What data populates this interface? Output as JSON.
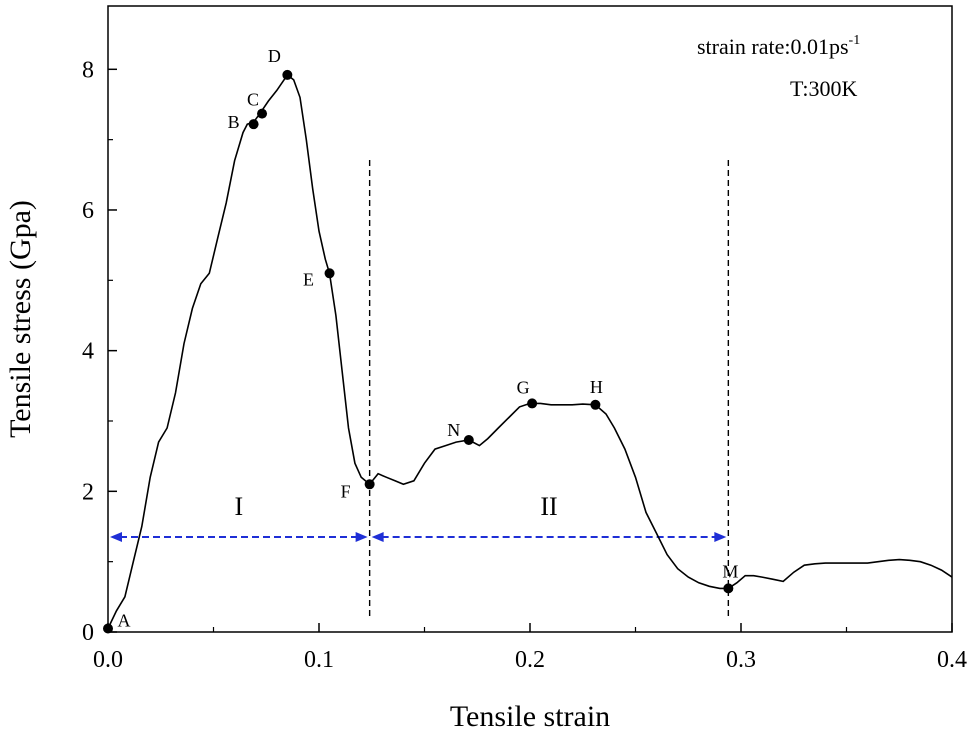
{
  "chart_data": {
    "type": "line",
    "xlabel": "Tensile strain",
    "ylabel": "Tensile stress (Gpa)",
    "xlim": [
      0,
      0.4
    ],
    "ylim": [
      0,
      8.9
    ],
    "xticks": [
      0.0,
      0.1,
      0.2,
      0.3,
      0.4
    ],
    "xtick_labels": [
      "0.0",
      "0.1",
      "0.2",
      "0.3",
      "0.4"
    ],
    "yticks": [
      0,
      2,
      4,
      6,
      8
    ],
    "ytick_labels": [
      "0",
      "2",
      "4",
      "6",
      "8"
    ],
    "grid": false,
    "annotation": {
      "strain_rate_prefix": "strain rate:0.01ps",
      "strain_rate_superscript": "-1",
      "temperature": "T:300K"
    },
    "series": [
      {
        "color": "#000000",
        "x": [
          0.0,
          0.004,
          0.008,
          0.012,
          0.016,
          0.02,
          0.024,
          0.028,
          0.032,
          0.036,
          0.04,
          0.044,
          0.048,
          0.052,
          0.056,
          0.06,
          0.064,
          0.066,
          0.069,
          0.072,
          0.076,
          0.08,
          0.085,
          0.088,
          0.091,
          0.094,
          0.097,
          0.1,
          0.103,
          0.105,
          0.108,
          0.111,
          0.114,
          0.117,
          0.12,
          0.124,
          0.128,
          0.132,
          0.136,
          0.14,
          0.145,
          0.15,
          0.155,
          0.16,
          0.165,
          0.171,
          0.176,
          0.18,
          0.185,
          0.19,
          0.195,
          0.2,
          0.205,
          0.21,
          0.215,
          0.22,
          0.225,
          0.231,
          0.236,
          0.24,
          0.245,
          0.25,
          0.255,
          0.26,
          0.265,
          0.27,
          0.275,
          0.28,
          0.285,
          0.29,
          0.294,
          0.298,
          0.302,
          0.306,
          0.31,
          0.315,
          0.32,
          0.325,
          0.33,
          0.335,
          0.34,
          0.345,
          0.35,
          0.355,
          0.36,
          0.365,
          0.37,
          0.375,
          0.38,
          0.385,
          0.39,
          0.395,
          0.4
        ],
        "y": [
          0.05,
          0.3,
          0.5,
          1.0,
          1.5,
          2.2,
          2.7,
          2.9,
          3.4,
          4.1,
          4.6,
          4.95,
          5.1,
          5.6,
          6.1,
          6.7,
          7.1,
          7.22,
          7.25,
          7.37,
          7.55,
          7.7,
          7.92,
          7.85,
          7.6,
          7.0,
          6.3,
          5.7,
          5.3,
          5.1,
          4.5,
          3.7,
          2.9,
          2.4,
          2.2,
          2.1,
          2.25,
          2.2,
          2.15,
          2.1,
          2.15,
          2.4,
          2.6,
          2.65,
          2.7,
          2.73,
          2.65,
          2.75,
          2.9,
          3.05,
          3.2,
          3.25,
          3.25,
          3.23,
          3.23,
          3.23,
          3.24,
          3.23,
          3.1,
          2.9,
          2.6,
          2.2,
          1.7,
          1.4,
          1.1,
          0.9,
          0.78,
          0.7,
          0.65,
          0.62,
          0.62,
          0.7,
          0.8,
          0.8,
          0.78,
          0.75,
          0.72,
          0.85,
          0.95,
          0.97,
          0.98,
          0.98,
          0.98,
          0.98,
          0.98,
          1.0,
          1.02,
          1.03,
          1.02,
          1.0,
          0.95,
          0.88,
          0.78
        ]
      }
    ],
    "points": [
      {
        "label": "A",
        "x": 0.0,
        "y": 0.05
      },
      {
        "label": "B",
        "x": 0.069,
        "y": 7.22
      },
      {
        "label": "C",
        "x": 0.073,
        "y": 7.37
      },
      {
        "label": "D",
        "x": 0.085,
        "y": 7.92
      },
      {
        "label": "E",
        "x": 0.105,
        "y": 5.1
      },
      {
        "label": "F",
        "x": 0.124,
        "y": 2.1
      },
      {
        "label": "N",
        "x": 0.171,
        "y": 2.73
      },
      {
        "label": "G",
        "x": 0.201,
        "y": 3.25
      },
      {
        "label": "H",
        "x": 0.231,
        "y": 3.23
      },
      {
        "label": "M",
        "x": 0.294,
        "y": 0.62
      }
    ],
    "vertical_lines": [
      0.124,
      0.294
    ],
    "regions": [
      {
        "label": "I",
        "from": 0.0,
        "to": 0.124,
        "y": 1.35
      },
      {
        "label": "II",
        "from": 0.124,
        "to": 0.294,
        "y": 1.35
      }
    ],
    "region_color": "#1f2fd6"
  }
}
